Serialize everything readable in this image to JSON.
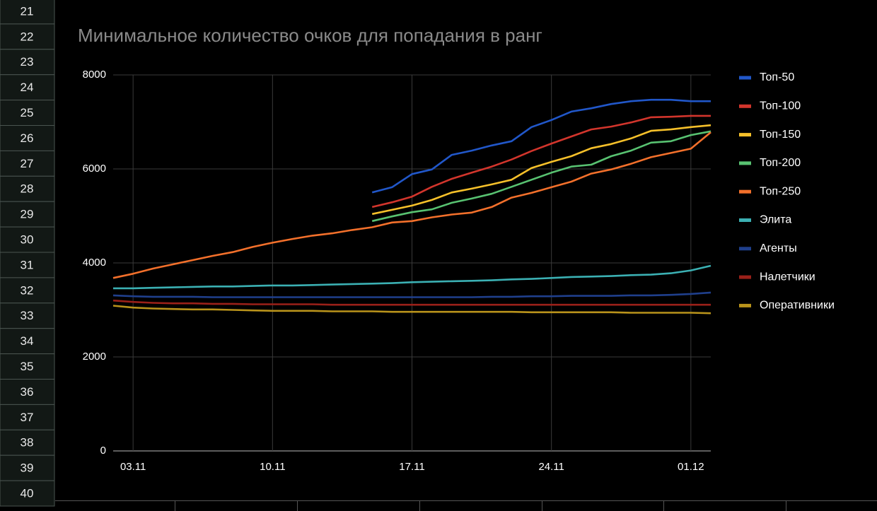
{
  "sheet": {
    "row_numbers": [
      21,
      22,
      23,
      24,
      25,
      26,
      27,
      28,
      29,
      30,
      31,
      32,
      33,
      34,
      35,
      36,
      37,
      38,
      39,
      40
    ]
  },
  "chart_data": {
    "type": "line",
    "title": "Минимальное количество очков для попадания в ранг",
    "categories": [
      null,
      "03.11",
      null,
      null,
      null,
      null,
      null,
      null,
      "10.11",
      null,
      null,
      null,
      null,
      null,
      null,
      "17.11",
      null,
      null,
      null,
      null,
      null,
      null,
      "24.11",
      null,
      null,
      null,
      null,
      null,
      null,
      "01.12",
      null
    ],
    "ylim": [
      0,
      8000
    ],
    "yticks": [
      0,
      2000,
      4000,
      6000,
      8000
    ],
    "grid": true,
    "legend": "right",
    "series": [
      {
        "name": "Топ-50",
        "color": "#2157c9",
        "values": [
          null,
          null,
          null,
          null,
          null,
          null,
          null,
          null,
          null,
          null,
          null,
          null,
          null,
          5500,
          5610,
          5890,
          5990,
          6300,
          6390,
          6500,
          6590,
          6890,
          7040,
          7220,
          7290,
          7380,
          7440,
          7470,
          7470,
          7440,
          7440
        ]
      },
      {
        "name": "Топ-100",
        "color": "#d2352c",
        "values": [
          null,
          null,
          null,
          null,
          null,
          null,
          null,
          null,
          null,
          null,
          null,
          null,
          null,
          5190,
          5290,
          5410,
          5620,
          5790,
          5920,
          6050,
          6200,
          6380,
          6540,
          6690,
          6840,
          6900,
          6990,
          7100,
          7110,
          7130,
          7130
        ]
      },
      {
        "name": "Топ-150",
        "color": "#f6c02a",
        "values": [
          null,
          null,
          null,
          null,
          null,
          null,
          null,
          null,
          null,
          null,
          null,
          null,
          null,
          5040,
          5130,
          5220,
          5340,
          5500,
          5580,
          5670,
          5770,
          6020,
          6150,
          6270,
          6440,
          6530,
          6650,
          6810,
          6840,
          6890,
          6930
        ]
      },
      {
        "name": "Топ-200",
        "color": "#58c271",
        "values": [
          null,
          null,
          null,
          null,
          null,
          null,
          null,
          null,
          null,
          null,
          null,
          null,
          null,
          4890,
          4990,
          5080,
          5140,
          5280,
          5370,
          5470,
          5620,
          5770,
          5920,
          6050,
          6090,
          6270,
          6390,
          6560,
          6590,
          6720,
          6800
        ]
      },
      {
        "name": "Топ-250",
        "color": "#f3702b",
        "values": [
          3680,
          3770,
          3880,
          3970,
          4060,
          4150,
          4230,
          4340,
          4430,
          4510,
          4580,
          4630,
          4700,
          4760,
          4860,
          4890,
          4970,
          5030,
          5070,
          5190,
          5390,
          5490,
          5610,
          5730,
          5900,
          5990,
          6110,
          6250,
          6340,
          6430,
          6780
        ]
      },
      {
        "name": "Элита",
        "color": "#3bb0b3",
        "values": [
          3460,
          3460,
          3470,
          3480,
          3490,
          3500,
          3500,
          3510,
          3520,
          3520,
          3530,
          3540,
          3550,
          3560,
          3570,
          3590,
          3600,
          3610,
          3620,
          3630,
          3650,
          3660,
          3680,
          3700,
          3710,
          3720,
          3740,
          3750,
          3780,
          3840,
          3940
        ]
      },
      {
        "name": "Агенты",
        "color": "#1f3f8c",
        "values": [
          3310,
          3290,
          3280,
          3280,
          3280,
          3270,
          3270,
          3270,
          3270,
          3270,
          3270,
          3270,
          3270,
          3270,
          3270,
          3270,
          3270,
          3270,
          3270,
          3280,
          3280,
          3290,
          3290,
          3300,
          3300,
          3300,
          3310,
          3310,
          3320,
          3340,
          3370
        ]
      },
      {
        "name": "Налетчики",
        "color": "#9a2019",
        "values": [
          3200,
          3170,
          3150,
          3140,
          3140,
          3130,
          3130,
          3120,
          3120,
          3120,
          3120,
          3110,
          3110,
          3110,
          3110,
          3110,
          3110,
          3110,
          3110,
          3110,
          3110,
          3110,
          3110,
          3110,
          3110,
          3110,
          3110,
          3110,
          3110,
          3110,
          3110
        ]
      },
      {
        "name": "Оперативники",
        "color": "#b9931b",
        "values": [
          3090,
          3050,
          3030,
          3020,
          3010,
          3010,
          3000,
          2990,
          2980,
          2980,
          2980,
          2970,
          2970,
          2970,
          2960,
          2960,
          2960,
          2960,
          2960,
          2960,
          2960,
          2950,
          2950,
          2950,
          2950,
          2950,
          2940,
          2940,
          2940,
          2940,
          2930
        ]
      }
    ]
  }
}
